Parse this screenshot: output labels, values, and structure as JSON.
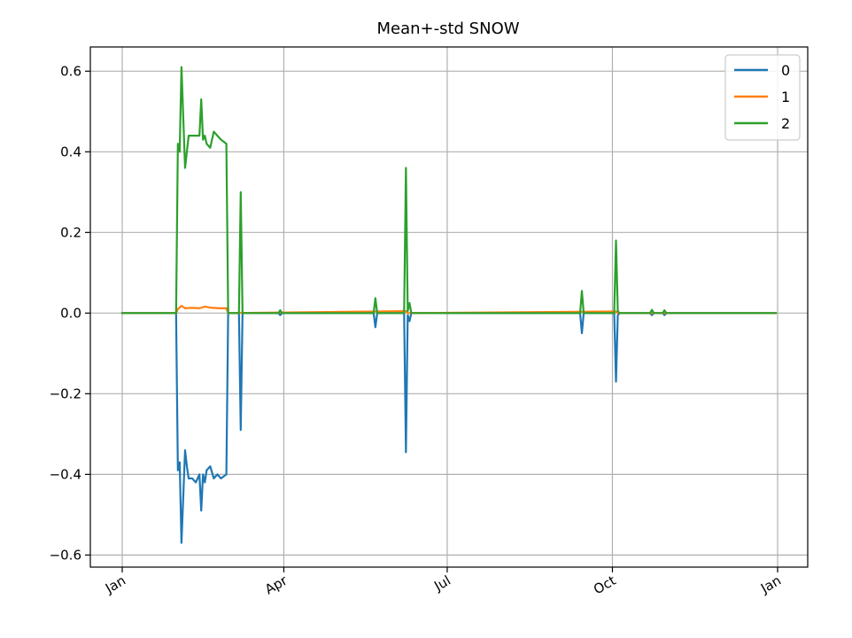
{
  "chart_data": {
    "type": "line",
    "title": "Mean+-std   SNOW",
    "xlabel": "",
    "ylabel": "",
    "x_domain": [
      "2023-01-01",
      "2024-01-01"
    ],
    "ylim": [
      -0.63,
      0.66
    ],
    "yticks": [
      -0.6,
      -0.4,
      -0.2,
      0.0,
      0.2,
      0.4,
      0.6
    ],
    "ytick_labels": [
      "−0.6",
      "−0.4",
      "−0.2",
      "0.0",
      "0.2",
      "0.4",
      "0.6"
    ],
    "xticks": [
      {
        "date": "2023-01-01",
        "label": "Jan"
      },
      {
        "date": "2023-04-01",
        "label": "Apr"
      },
      {
        "date": "2023-07-01",
        "label": "Jul"
      },
      {
        "date": "2023-10-01",
        "label": "Oct"
      },
      {
        "date": "2024-01-01",
        "label": "Jan"
      }
    ],
    "grid": true,
    "legend_position": "upper-right",
    "series": [
      {
        "name": "0",
        "color": "#1f77b4",
        "points": [
          [
            "2023-01-01",
            0
          ],
          [
            "2023-01-31",
            0
          ],
          [
            "2023-02-01",
            -0.39
          ],
          [
            "2023-02-02",
            -0.37
          ],
          [
            "2023-02-03",
            -0.57
          ],
          [
            "2023-02-05",
            -0.34
          ],
          [
            "2023-02-06",
            -0.38
          ],
          [
            "2023-02-07",
            -0.41
          ],
          [
            "2023-02-09",
            -0.41
          ],
          [
            "2023-02-11",
            -0.42
          ],
          [
            "2023-02-13",
            -0.4
          ],
          [
            "2023-02-14",
            -0.49
          ],
          [
            "2023-02-15",
            -0.4
          ],
          [
            "2023-02-16",
            -0.42
          ],
          [
            "2023-02-17",
            -0.39
          ],
          [
            "2023-02-19",
            -0.38
          ],
          [
            "2023-02-21",
            -0.41
          ],
          [
            "2023-02-23",
            -0.4
          ],
          [
            "2023-02-25",
            -0.41
          ],
          [
            "2023-02-28",
            -0.4
          ],
          [
            "2023-03-01",
            0
          ],
          [
            "2023-03-07",
            0
          ],
          [
            "2023-03-08",
            -0.29
          ],
          [
            "2023-03-09",
            0
          ],
          [
            "2023-03-29",
            0
          ],
          [
            "2023-03-30",
            -0.005
          ],
          [
            "2023-03-31",
            0
          ],
          [
            "2023-05-21",
            0
          ],
          [
            "2023-05-22",
            -0.035
          ],
          [
            "2023-05-23",
            0
          ],
          [
            "2023-06-07",
            0
          ],
          [
            "2023-06-08",
            -0.345
          ],
          [
            "2023-06-09",
            -0.005
          ],
          [
            "2023-06-10",
            -0.02
          ],
          [
            "2023-06-11",
            0
          ],
          [
            "2023-09-13",
            0
          ],
          [
            "2023-09-14",
            -0.05
          ],
          [
            "2023-09-15",
            0
          ],
          [
            "2023-10-02",
            0
          ],
          [
            "2023-10-03",
            -0.17
          ],
          [
            "2023-10-04",
            -0.005
          ],
          [
            "2023-10-05",
            0
          ],
          [
            "2023-10-22",
            0
          ],
          [
            "2023-10-23",
            -0.005
          ],
          [
            "2023-10-24",
            0
          ],
          [
            "2023-10-29",
            0
          ],
          [
            "2023-10-30",
            -0.005
          ],
          [
            "2023-10-31",
            0
          ],
          [
            "2023-12-31",
            0
          ]
        ]
      },
      {
        "name": "1",
        "color": "#ff7f0e",
        "points": [
          [
            "2023-01-01",
            0
          ],
          [
            "2023-01-31",
            0
          ],
          [
            "2023-02-01",
            0.01
          ],
          [
            "2023-02-03",
            0.018
          ],
          [
            "2023-02-05",
            0.012
          ],
          [
            "2023-02-09",
            0.013
          ],
          [
            "2023-02-13",
            0.012
          ],
          [
            "2023-02-16",
            0.016
          ],
          [
            "2023-02-20",
            0.013
          ],
          [
            "2023-02-24",
            0.012
          ],
          [
            "2023-02-28",
            0.012
          ],
          [
            "2023-03-01",
            0
          ],
          [
            "2023-06-08",
            0.005
          ],
          [
            "2023-06-09",
            0
          ],
          [
            "2023-10-03",
            0.004
          ],
          [
            "2023-10-04",
            0
          ],
          [
            "2023-12-31",
            0
          ]
        ]
      },
      {
        "name": "2",
        "color": "#2ca02c",
        "points": [
          [
            "2023-01-01",
            0
          ],
          [
            "2023-01-31",
            0
          ],
          [
            "2023-02-01",
            0.42
          ],
          [
            "2023-02-02",
            0.4
          ],
          [
            "2023-02-03",
            0.61
          ],
          [
            "2023-02-05",
            0.36
          ],
          [
            "2023-02-06",
            0.4
          ],
          [
            "2023-02-07",
            0.44
          ],
          [
            "2023-02-09",
            0.44
          ],
          [
            "2023-02-11",
            0.44
          ],
          [
            "2023-02-13",
            0.44
          ],
          [
            "2023-02-14",
            0.53
          ],
          [
            "2023-02-15",
            0.43
          ],
          [
            "2023-02-16",
            0.44
          ],
          [
            "2023-02-17",
            0.42
          ],
          [
            "2023-02-19",
            0.41
          ],
          [
            "2023-02-21",
            0.45
          ],
          [
            "2023-02-23",
            0.44
          ],
          [
            "2023-02-25",
            0.43
          ],
          [
            "2023-02-28",
            0.42
          ],
          [
            "2023-03-01",
            0
          ],
          [
            "2023-03-07",
            0
          ],
          [
            "2023-03-08",
            0.3
          ],
          [
            "2023-03-09",
            0
          ],
          [
            "2023-03-29",
            0
          ],
          [
            "2023-03-30",
            0.007
          ],
          [
            "2023-03-31",
            0
          ],
          [
            "2023-05-21",
            0
          ],
          [
            "2023-05-22",
            0.037
          ],
          [
            "2023-05-23",
            0
          ],
          [
            "2023-06-07",
            0
          ],
          [
            "2023-06-08",
            0.36
          ],
          [
            "2023-06-09",
            0.005
          ],
          [
            "2023-06-10",
            0.025
          ],
          [
            "2023-06-11",
            0
          ],
          [
            "2023-09-13",
            0
          ],
          [
            "2023-09-14",
            0.055
          ],
          [
            "2023-09-15",
            0
          ],
          [
            "2023-10-02",
            0
          ],
          [
            "2023-10-03",
            0.18
          ],
          [
            "2023-10-04",
            0.005
          ],
          [
            "2023-10-05",
            0
          ],
          [
            "2023-10-22",
            0
          ],
          [
            "2023-10-23",
            0.008
          ],
          [
            "2023-10-24",
            0
          ],
          [
            "2023-10-29",
            0
          ],
          [
            "2023-10-30",
            0.007
          ],
          [
            "2023-10-31",
            0
          ],
          [
            "2023-12-31",
            0
          ]
        ]
      }
    ]
  }
}
